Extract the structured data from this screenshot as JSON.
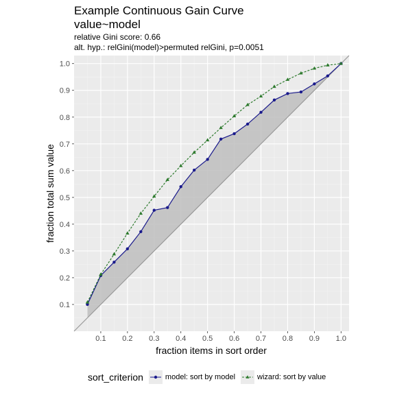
{
  "chart_data": {
    "type": "line",
    "title": "Example Continuous Gain Curve",
    "title_line2": "value~model",
    "subtitle": "relative Gini score: 0.66",
    "subtitle_line2": "alt. hyp.: relGini(model)>permuted relGini, p=0.0051",
    "xlabel": "fraction items in sort order",
    "ylabel": "fraction total sum value",
    "xlim": [
      0.0,
      1.03
    ],
    "ylim": [
      0.0,
      1.03
    ],
    "xticks": [
      0.1,
      0.2,
      0.3,
      0.4,
      0.5,
      0.6,
      0.7,
      0.8,
      0.9,
      1.0
    ],
    "xtick_labels": [
      "0.1",
      "0.2",
      "0.3",
      "0.4",
      "0.5",
      "0.6",
      "0.7",
      "0.8",
      "0.9",
      "1.0"
    ],
    "yticks": [
      0.1,
      0.2,
      0.3,
      0.4,
      0.5,
      0.6,
      0.7,
      0.8,
      0.9,
      1.0
    ],
    "ytick_labels": [
      "0.1",
      "0.2",
      "0.3",
      "0.4",
      "0.5",
      "0.6",
      "0.7",
      "0.8",
      "0.9",
      "1.0"
    ],
    "grid": true,
    "legend_position": "bottom",
    "legend_title": "sort_criterion",
    "series": [
      {
        "name": "model: sort by model",
        "color": "#1a1a8c",
        "line_style": "solid",
        "marker": "circle",
        "x": [
          0.05,
          0.1,
          0.15,
          0.2,
          0.25,
          0.3,
          0.35,
          0.4,
          0.45,
          0.5,
          0.55,
          0.6,
          0.65,
          0.7,
          0.75,
          0.8,
          0.85,
          0.9,
          0.95,
          1.0
        ],
        "values": [
          0.1,
          0.208,
          0.258,
          0.308,
          0.372,
          0.452,
          0.462,
          0.54,
          0.602,
          0.642,
          0.718,
          0.738,
          0.774,
          0.818,
          0.864,
          0.888,
          0.894,
          0.924,
          0.954,
          1.0
        ]
      },
      {
        "name": "wizard: sort by value",
        "color": "#2d7a2d",
        "line_style": "dashed",
        "marker": "triangle",
        "x": [
          0.05,
          0.1,
          0.15,
          0.2,
          0.25,
          0.3,
          0.35,
          0.4,
          0.45,
          0.5,
          0.55,
          0.6,
          0.65,
          0.7,
          0.75,
          0.8,
          0.85,
          0.9,
          0.95,
          1.0
        ],
        "values": [
          0.108,
          0.212,
          0.288,
          0.366,
          0.44,
          0.504,
          0.566,
          0.618,
          0.668,
          0.714,
          0.76,
          0.804,
          0.846,
          0.878,
          0.914,
          0.94,
          0.964,
          0.982,
          0.994,
          1.0
        ]
      }
    ],
    "diagonal_color": "#999999",
    "shade_color": "#bebebe"
  }
}
